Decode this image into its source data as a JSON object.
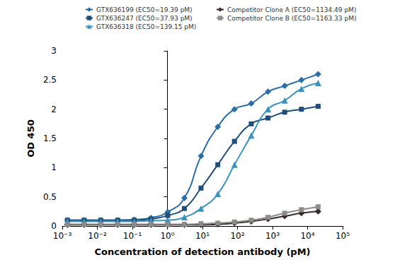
{
  "chart_data": {
    "type": "line",
    "x_label": "Concentration of detection antibody (pM)",
    "y_label": "OD 450",
    "log": "x",
    "grid": false,
    "legend": "top",
    "x": [
      0.0014,
      0.0042,
      0.0125,
      0.038,
      0.113,
      0.34,
      1.02,
      3.05,
      9.1,
      27.4,
      82,
      247,
      741,
      2222,
      6667,
      20000
    ],
    "xlim": [
      0.001,
      100000
    ],
    "xticks": [
      {
        "value": 0.001,
        "label": "10⁻³"
      },
      {
        "value": 0.01,
        "label": "10⁻²"
      },
      {
        "value": 0.1,
        "label": "10⁻¹"
      },
      {
        "value": 1,
        "label": "10⁰"
      },
      {
        "value": 10,
        "label": "10¹"
      },
      {
        "value": 100,
        "label": "10²"
      },
      {
        "value": 1000,
        "label": "10³"
      },
      {
        "value": 10000,
        "label": "10⁴"
      },
      {
        "value": 100000,
        "label": "10⁵"
      }
    ],
    "ylim": [
      0,
      3
    ],
    "yticks": [
      0,
      0.5,
      1,
      1.5,
      2,
      2.5,
      3
    ],
    "series": [
      {
        "name": "GTX636199 (EC50=19.39 pM)",
        "color": "#2b6ea6",
        "marker": "diamond",
        "values": [
          0.1,
          0.1,
          0.1,
          0.1,
          0.11,
          0.14,
          0.24,
          0.48,
          1.2,
          1.7,
          2.0,
          2.1,
          2.3,
          2.4,
          2.5,
          2.6
        ]
      },
      {
        "name": "GTX636247 (EC50=37.93 pM)",
        "color": "#1f4e79",
        "marker": "square",
        "values": [
          0.1,
          0.1,
          0.1,
          0.1,
          0.1,
          0.12,
          0.18,
          0.3,
          0.65,
          1.05,
          1.45,
          1.75,
          1.85,
          1.95,
          2.0,
          2.05
        ]
      },
      {
        "name": "GTX636318 (EC50=139.15 pM)",
        "color": "#3a93bd",
        "marker": "triangle",
        "values": [
          0.08,
          0.08,
          0.08,
          0.08,
          0.08,
          0.09,
          0.1,
          0.15,
          0.3,
          0.55,
          1.05,
          1.55,
          2.0,
          2.15,
          2.35,
          2.45
        ]
      },
      {
        "name": "Competitor Clone A (EC50=1134.49 pM)",
        "color": "#3b2a2a",
        "marker": "diamond",
        "values": [
          0.02,
          0.02,
          0.02,
          0.02,
          0.02,
          0.02,
          0.02,
          0.02,
          0.02,
          0.03,
          0.05,
          0.08,
          0.12,
          0.17,
          0.22,
          0.25
        ]
      },
      {
        "name": "Competitor Clone B (EC50=1163.33 pM)",
        "color": "#8c8c8c",
        "marker": "square",
        "values": [
          0.03,
          0.03,
          0.03,
          0.03,
          0.03,
          0.03,
          0.03,
          0.03,
          0.04,
          0.05,
          0.07,
          0.1,
          0.15,
          0.22,
          0.28,
          0.33
        ]
      }
    ]
  }
}
